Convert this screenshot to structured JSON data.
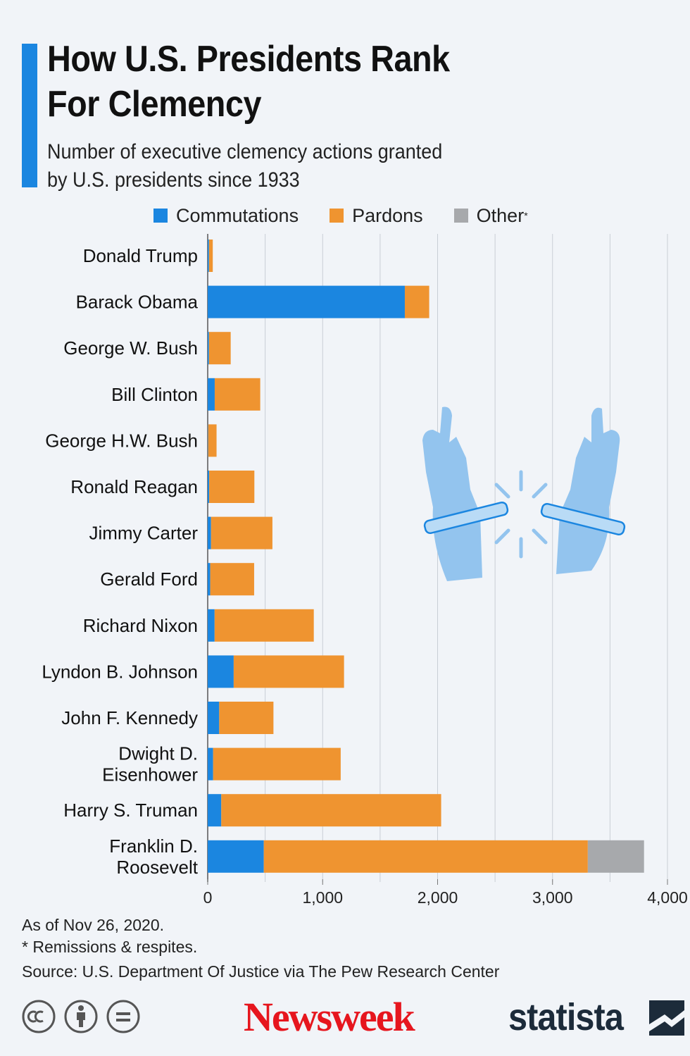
{
  "header": {
    "title_line1": "How U.S. Presidents Rank",
    "title_line2": "For Clemency",
    "subtitle_line1": "Number of executive clemency actions granted",
    "subtitle_line2": "by U.S. presidents since 1933"
  },
  "legend": {
    "commutations": "Commutations",
    "pardons": "Pardons",
    "other": "Other",
    "other_marker": "*"
  },
  "colors": {
    "commutations": "#1b86e0",
    "pardons": "#ef9430",
    "other": "#a7a9ac",
    "accent": "#1b86e0",
    "illustration": "#93c4ee"
  },
  "chart_data": {
    "type": "bar",
    "orientation": "horizontal",
    "stacked": true,
    "categories": [
      [
        "Donald Trump"
      ],
      [
        "Barack Obama"
      ],
      [
        "George W. Bush"
      ],
      [
        "Bill Clinton"
      ],
      [
        "George H.W. Bush"
      ],
      [
        "Ronald Reagan"
      ],
      [
        "Jimmy Carter"
      ],
      [
        "Gerald Ford"
      ],
      [
        "Richard Nixon"
      ],
      [
        "Lyndon B. Johnson"
      ],
      [
        "John F. Kennedy"
      ],
      [
        "Dwight D.",
        "Eisenhower"
      ],
      [
        "Harry S. Truman"
      ],
      [
        "Franklin D.",
        "Roosevelt"
      ]
    ],
    "series": [
      {
        "name": "Commutations",
        "values": [
          11,
          1715,
          11,
          61,
          3,
          13,
          29,
          22,
          60,
          226,
          100,
          47,
          118,
          488
        ]
      },
      {
        "name": "Pardons",
        "values": [
          33,
          212,
          189,
          396,
          74,
          393,
          534,
          382,
          863,
          960,
          472,
          1110,
          1913,
          2819
        ]
      },
      {
        "name": "Other",
        "values": [
          0,
          0,
          0,
          0,
          0,
          0,
          0,
          0,
          0,
          0,
          0,
          0,
          0,
          489
        ]
      }
    ],
    "xlim": [
      0,
      4000
    ],
    "xticks": [
      0,
      1000,
      2000,
      3000,
      4000
    ],
    "xtick_labels": [
      "0",
      "1,000",
      "2,000",
      "3,000",
      "4,000"
    ],
    "grid": true
  },
  "footer": {
    "note_date": "As of Nov 26, 2020.",
    "note_other": "* Remissions & respites.",
    "source": "Source: U.S. Department Of Justice via The Pew Research Center",
    "newsweek": "Newsweek",
    "statista": "statista"
  }
}
